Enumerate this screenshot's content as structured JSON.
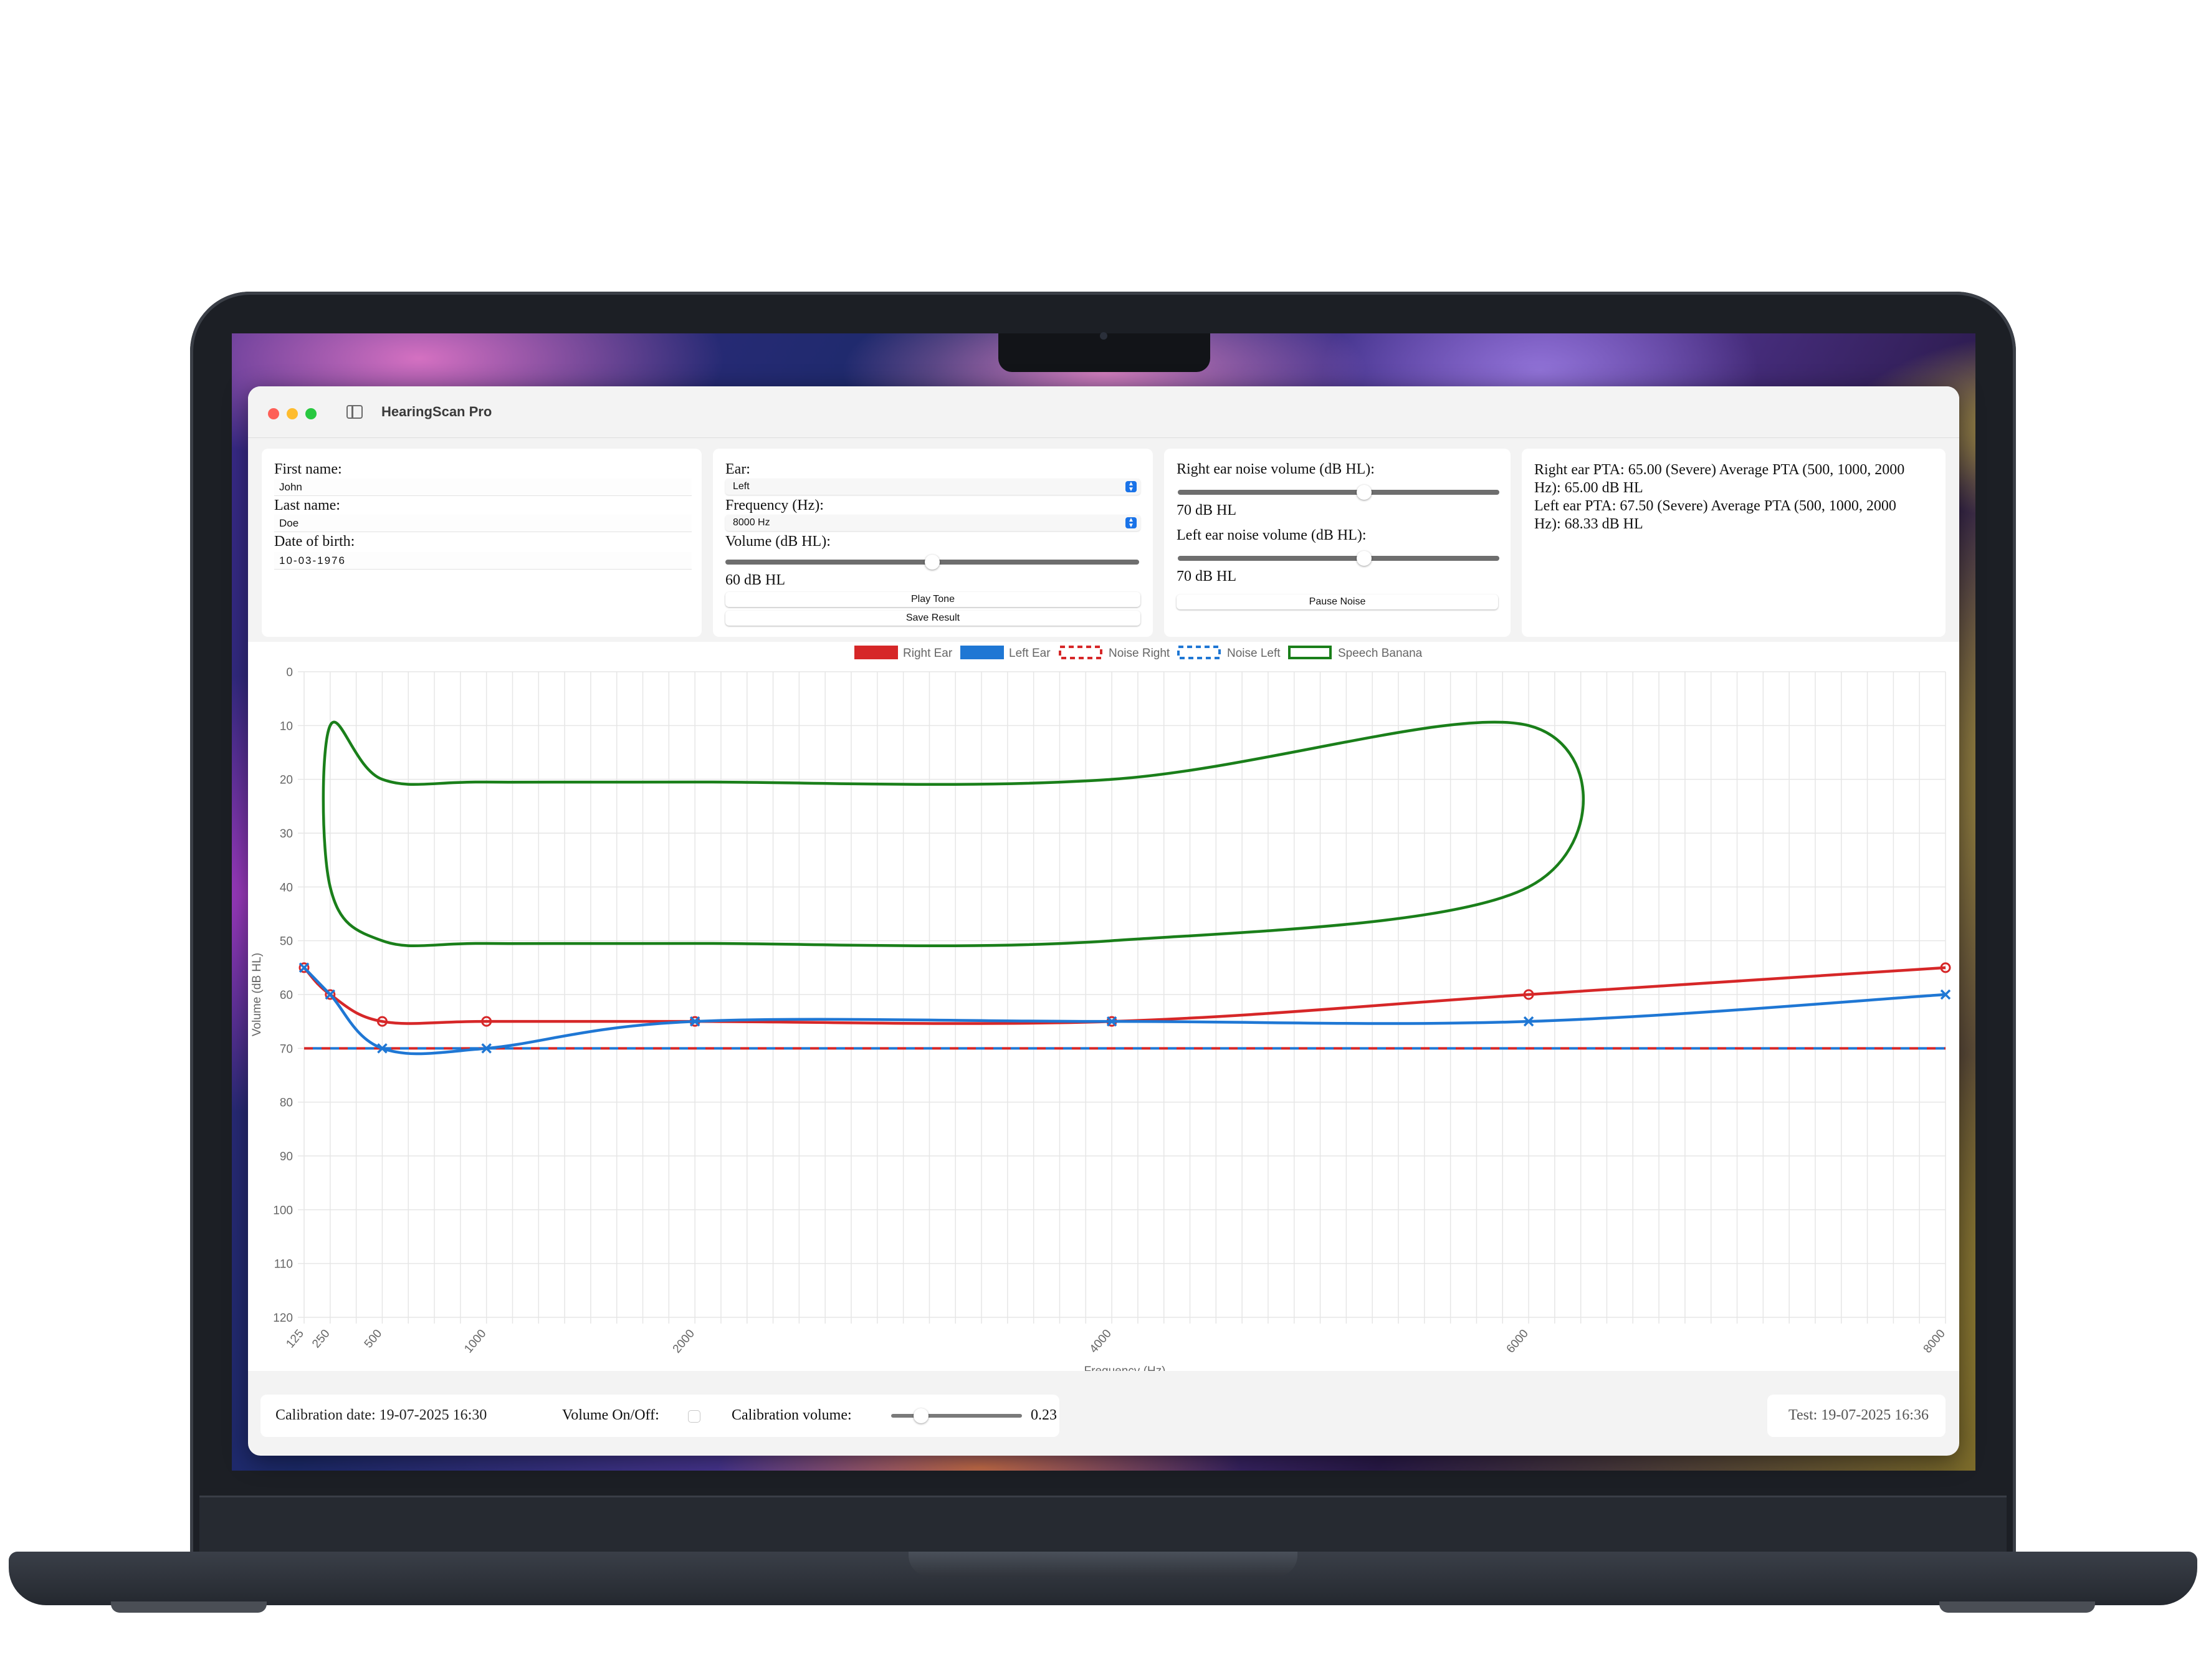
{
  "window": {
    "title": "HearingScan Pro"
  },
  "patient": {
    "first_name_label": "First name:",
    "first_name_value": "John",
    "last_name_label": "Last name:",
    "last_name_value": "Doe",
    "dob_label": "Date of birth:",
    "dob_value": "10-03-1976"
  },
  "test_controls": {
    "ear_label": "Ear:",
    "ear_value": "Left",
    "frequency_label": "Frequency (Hz):",
    "frequency_value": "8000 Hz",
    "volume_label": "Volume (dB HL):",
    "volume_slider_level": 0.5,
    "volume_value": "60 dB HL",
    "play_tone_label": "Play Tone",
    "save_result_label": "Save Result"
  },
  "noise_controls": {
    "right_label": "Right ear noise volume (dB HL):",
    "right_slider_level": 0.58,
    "right_value": "70 dB HL",
    "left_label": "Left ear noise volume (dB HL):",
    "left_slider_level": 0.58,
    "left_value": "70 dB HL",
    "pause_noise_label": "Pause Noise"
  },
  "results": {
    "right_line_1": "Right ear PTA: 65.00 (Severe) Average PTA (500, 1000, 2000",
    "right_line_2": "Hz): 65.00 dB HL",
    "left_line_1": "Left ear PTA: 67.50 (Severe) Average PTA (500, 1000, 2000",
    "left_line_2": "Hz): 68.33 dB HL"
  },
  "chart_data": {
    "type": "line",
    "xlabel": "Frequency (Hz)",
    "ylabel": "Volume (dB HL)",
    "ylim": [
      0,
      120
    ],
    "y_inverted": true,
    "y_ticks": [
      0,
      10,
      20,
      30,
      40,
      50,
      60,
      70,
      80,
      90,
      100,
      110,
      120
    ],
    "x_ticks": [
      125,
      250,
      500,
      1000,
      2000,
      4000,
      6000,
      8000
    ],
    "x_range": [
      125,
      8000
    ],
    "grid": true,
    "legend_position": "top-center",
    "series": [
      {
        "name": "Right Ear",
        "color": "#d62728",
        "style": "solid",
        "marker": "circle",
        "x": [
          125,
          250,
          500,
          1000,
          2000,
          4000,
          6000,
          8000
        ],
        "y": [
          55,
          60,
          65,
          65,
          65,
          65,
          60,
          55
        ]
      },
      {
        "name": "Left Ear",
        "color": "#1f77d4",
        "style": "solid",
        "marker": "x",
        "x": [
          125,
          250,
          500,
          1000,
          2000,
          4000,
          6000,
          8000
        ],
        "y": [
          55,
          60,
          70,
          70,
          65,
          65,
          65,
          60
        ]
      },
      {
        "name": "Noise Right",
        "color": "#d62728",
        "style": "dashed",
        "x": [
          125,
          8000
        ],
        "y": [
          70,
          70
        ]
      },
      {
        "name": "Noise Left",
        "color": "#1f77d4",
        "style": "dashed",
        "x": [
          125,
          8000
        ],
        "y": [
          70,
          70
        ]
      },
      {
        "name": "Speech Banana",
        "color": "#1a7f1a",
        "style": "solid",
        "closed": true,
        "x": [
          250,
          500,
          1000,
          2000,
          4000,
          6000,
          6000,
          4000,
          2000,
          1000,
          500,
          250
        ],
        "y": [
          10,
          20,
          20.5,
          20.5,
          20,
          10,
          40,
          50,
          50.5,
          50.5,
          50,
          40
        ]
      }
    ]
  },
  "footer": {
    "calibration_date": "Calibration date: 19-07-2025 16:30",
    "volume_toggle_label": "Volume On/Off:",
    "calibration_volume_label": "Calibration volume:",
    "calibration_slider_level": 0.23,
    "calibration_volume_value": "0.23",
    "test_timestamp": "Test: 19-07-2025 16:36"
  },
  "colors": {
    "right_ear": "#d62728",
    "left_ear": "#1f77d4",
    "speech_banana": "#1a7f1a",
    "accent": "#1a73e8"
  }
}
